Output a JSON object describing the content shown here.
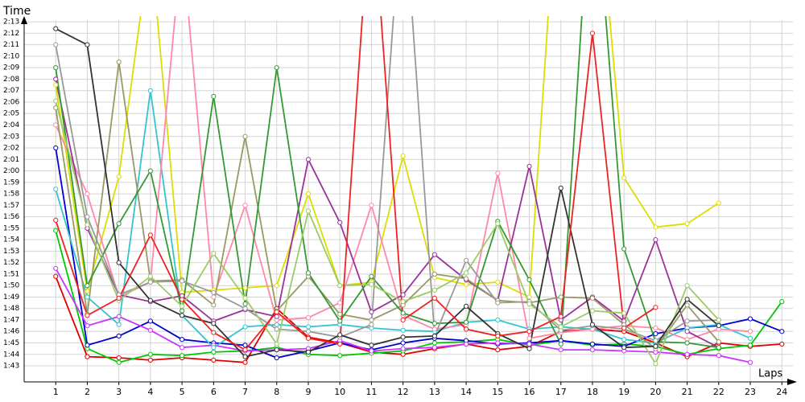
{
  "chart_data": {
    "type": "line",
    "ylabel": "Time",
    "xlabel": "Laps",
    "x": [
      1,
      2,
      3,
      4,
      5,
      6,
      7,
      8,
      9,
      10,
      11,
      12,
      13,
      14,
      15,
      16,
      17,
      18,
      19,
      20,
      21,
      22,
      23,
      24
    ],
    "xlim": [
      0,
      24.35
    ],
    "xticks": [
      1,
      2,
      3,
      4,
      5,
      6,
      7,
      8,
      9,
      10,
      11,
      12,
      13,
      14,
      15,
      16,
      17,
      18,
      19,
      20,
      21,
      22,
      23,
      24
    ],
    "ylim": [
      101.6,
      133.5
    ],
    "yticks": [
      {
        "value": 103,
        "label": "1:43"
      },
      {
        "value": 104,
        "label": "1:44"
      },
      {
        "value": 105,
        "label": "1:45"
      },
      {
        "value": 106,
        "label": "1:46"
      },
      {
        "value": 107,
        "label": "1:47"
      },
      {
        "value": 108,
        "label": "1:48"
      },
      {
        "value": 109,
        "label": "1:49"
      },
      {
        "value": 110,
        "label": "1:50"
      },
      {
        "value": 111,
        "label": "1:51"
      },
      {
        "value": 112,
        "label": "1:52"
      },
      {
        "value": 113,
        "label": "1:53"
      },
      {
        "value": 114,
        "label": "1:54"
      },
      {
        "value": 115,
        "label": "1:55"
      },
      {
        "value": 116,
        "label": "1:56"
      },
      {
        "value": 117,
        "label": "1:57"
      },
      {
        "value": 118,
        "label": "1:58"
      },
      {
        "value": 119,
        "label": "1:59"
      },
      {
        "value": 120,
        "label": "2:00"
      },
      {
        "value": 121,
        "label": "2:01"
      },
      {
        "value": 122,
        "label": "2:02"
      },
      {
        "value": 123,
        "label": "2:03"
      },
      {
        "value": 124,
        "label": "2:04"
      },
      {
        "value": 125,
        "label": "2:05"
      },
      {
        "value": 126,
        "label": "2:06"
      },
      {
        "value": 127,
        "label": "2:07"
      },
      {
        "value": 128,
        "label": "2:08"
      },
      {
        "value": 129,
        "label": "2:09"
      },
      {
        "value": 130,
        "label": "2:10"
      },
      {
        "value": 131,
        "label": "2:11"
      },
      {
        "value": 132,
        "label": "2:12"
      },
      {
        "value": 133,
        "label": "2:13"
      }
    ],
    "grid": true,
    "series": [
      {
        "color": "#e00000",
        "values": [
          110.8,
          103.8,
          103.7,
          103.5,
          103.7,
          103.5,
          103.3,
          108.0,
          105.5,
          105.0,
          104.2,
          104.0,
          104.5,
          104.9,
          104.4,
          104.7,
          106.0,
          106.2,
          106.0,
          105.0,
          103.8,
          105.0,
          104.7,
          104.9
        ]
      },
      {
        "color": "#00c800",
        "values": [
          114.8,
          104.5,
          103.3,
          104.0,
          103.9,
          104.2,
          104.3,
          104.6,
          104.0,
          103.9,
          104.1,
          104.3,
          105.0,
          105.1,
          105.3,
          104.8,
          105.2,
          104.8,
          104.9,
          104.7,
          104.0,
          104.5,
          104.8,
          108.6
        ]
      },
      {
        "color": "#0000d0",
        "values": [
          122,
          104.8,
          105.6,
          106.9,
          105.3,
          105.0,
          104.8,
          103.7,
          104.3,
          105.0,
          104.4,
          105.0,
          105.4,
          105.2,
          104.9,
          105.0,
          105.2,
          104.9,
          104.7,
          105.8,
          106.3,
          106.5,
          107.1,
          106.0
        ]
      },
      {
        "color": "#cc33ff",
        "values": [
          111.5,
          106.5,
          107.3,
          106.1,
          104.6,
          104.8,
          104.3,
          104.4,
          104.5,
          105.2,
          104.3,
          104.5,
          104.6,
          104.9,
          105.0,
          104.9,
          104.4,
          104.4,
          104.3,
          104.2,
          104.0,
          103.9,
          103.3,
          null
        ]
      },
      {
        "color": "#33c4d0",
        "values": [
          118.4,
          109,
          106.6,
          127,
          107.4,
          104.6,
          106.4,
          106.6,
          106.4,
          106.6,
          106.3,
          106.1,
          106.0,
          106.8,
          107.0,
          106.2,
          106.4,
          106.2,
          105.3,
          105.0,
          106.3,
          106.6,
          105.4,
          null
        ]
      },
      {
        "color": "#dddd00",
        "values": [
          127.5,
          109.5,
          119.5,
          140,
          109.4,
          109.6,
          109.8,
          110,
          118,
          110.0,
          110.3,
          121.3,
          110.7,
          110.1,
          110.3,
          109.0,
          150,
          150,
          119.4,
          115.1,
          115.4,
          117.2,
          null,
          null
        ]
      },
      {
        "color": "#ff88aa",
        "values": [
          124,
          118,
          109,
          110.3,
          140,
          109,
          117,
          107,
          107.2,
          108.5,
          117.0,
          107.4,
          106.2,
          106.6,
          119.8,
          105.4,
          105.9,
          106.2,
          106.5,
          106.3,
          105.3,
          106.2,
          106.0,
          null
        ]
      },
      {
        "color": "#993399",
        "values": [
          128,
          115,
          109.2,
          108.6,
          109.1,
          106.9,
          107.9,
          107.3,
          121.0,
          115.5,
          107.7,
          109.2,
          112.7,
          110.5,
          108.7,
          120.4,
          107.0,
          109.0,
          106.9,
          114.0,
          106.0,
          104.6,
          null,
          null
        ]
      },
      {
        "color": "#999966",
        "values": [
          125.5,
          107.5,
          129.5,
          110.4,
          110.5,
          108.3,
          123,
          107.8,
          110.8,
          107.5,
          107.0,
          108.3,
          111.0,
          110.6,
          108.7,
          108.5,
          109.0,
          108.9,
          106.6,
          104.5,
          108.3,
          105.1,
          null,
          null
        ]
      },
      {
        "color": "#339933",
        "values": [
          129,
          110,
          115.4,
          120,
          107.8,
          126.5,
          108.4,
          129,
          111.1,
          106.9,
          110.8,
          107.6,
          106.7,
          106.8,
          115.6,
          110.5,
          104.9,
          148,
          113.2,
          105.1,
          105.0,
          104.6,
          null,
          null
        ]
      },
      {
        "color": "#999999",
        "values": [
          131,
          116,
          109.2,
          110.3,
          110.4,
          109.4,
          108.0,
          106.2,
          106.0,
          105.5,
          106.6,
          145,
          105.6,
          112.2,
          108.5,
          108.6,
          106.1,
          106.5,
          106.2,
          105.2,
          106.9,
          107.0,
          null,
          null
        ]
      },
      {
        "color": "#99cc66",
        "values": [
          126.1,
          115.3,
          108.7,
          110.8,
          108.2,
          112.8,
          108.9,
          104.9,
          116.5,
          110.0,
          110.1,
          108.6,
          109.6,
          111.1,
          115.4,
          108.4,
          106.4,
          107.8,
          107.6,
          103.2,
          110.0,
          107.0,
          null,
          null
        ]
      },
      {
        "color": "#333333",
        "values": [
          132.4,
          131,
          112,
          108.7,
          107.4,
          106.7,
          103.8,
          104.4,
          104.2,
          105.7,
          104.8,
          105.5,
          105.6,
          108.2,
          105.8,
          104.5,
          118.5,
          106.6,
          104.6,
          104.7,
          108.8,
          106.5,
          null,
          null
        ]
      },
      {
        "color": "#ee2222",
        "values": [
          115.7,
          107.4,
          108.9,
          114.4,
          108.8,
          105.9,
          104.4,
          107.7,
          105.4,
          104.9,
          145,
          107.0,
          108.9,
          106.2,
          105.6,
          106.0,
          107.3,
          132,
          106.3,
          108.1,
          null,
          null,
          null,
          null
        ]
      }
    ]
  }
}
